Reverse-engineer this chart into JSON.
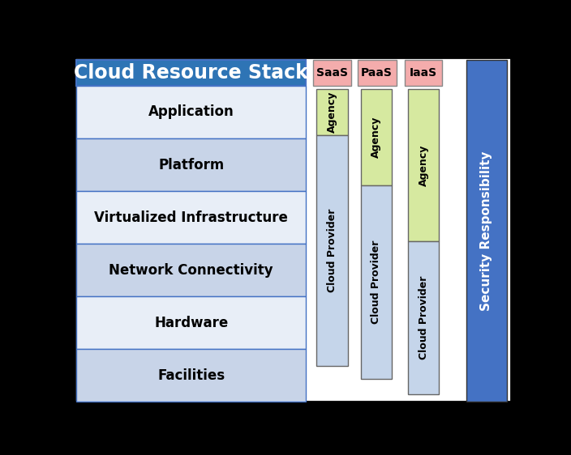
{
  "title": "Cloud Resource Stack",
  "title_bg": "#2E74B5",
  "title_text_color": "#FFFFFF",
  "layers": [
    "Application",
    "Platform",
    "Virtualized Infrastructure",
    "Network Connectivity",
    "Hardware",
    "Facilities"
  ],
  "layer_bg_light": "#E8EEF7",
  "layer_bg_dark": "#C8D4E8",
  "layer_border_color": "#4472C4",
  "layer_text_color": "#000000",
  "service_models": [
    "SaaS",
    "PaaS",
    "IaaS"
  ],
  "service_header_bg": "#F4ACAC",
  "service_header_text_color": "#000000",
  "agency_color": "#D6E9A0",
  "cloud_provider_color": "#C5D5EA",
  "security_bar_color": "#4472C4",
  "security_text": "Security Responsibility",
  "agency_text": "Agency",
  "provider_text": "Cloud Provider",
  "fig_bg": "#000000",
  "inner_bg": "#FFFFFF",
  "outer_border": "#000000"
}
